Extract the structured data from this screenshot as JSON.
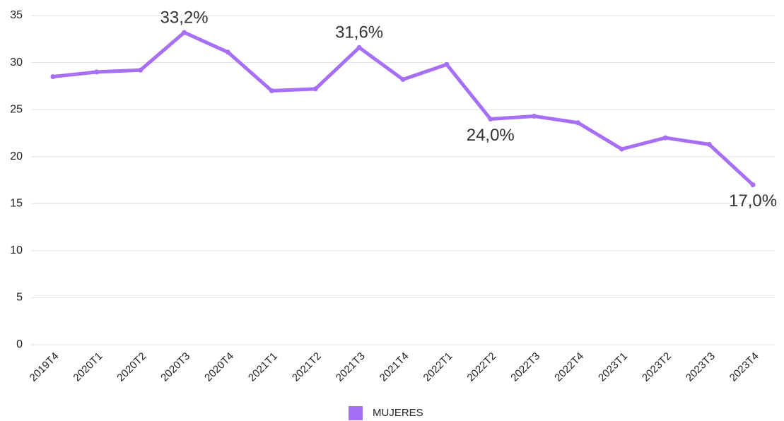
{
  "chart_data": {
    "type": "line",
    "categories": [
      "2019T4",
      "2020T1",
      "2020T2",
      "2020T3",
      "2020T4",
      "2021T1",
      "2021T2",
      "2021T3",
      "2021T4",
      "2022T1",
      "2022T2",
      "2022T3",
      "2022T4",
      "2023T1",
      "2023T2",
      "2023T3",
      "2023T4"
    ],
    "series": [
      {
        "name": "MUJERES",
        "color": "#a66ff5",
        "values": [
          28.5,
          29.0,
          29.2,
          33.2,
          31.1,
          27.0,
          27.2,
          31.6,
          28.2,
          29.8,
          24.0,
          24.3,
          23.6,
          20.8,
          22.0,
          21.3,
          17.0
        ],
        "value_labels": [
          null,
          null,
          null,
          "33,2%",
          null,
          null,
          null,
          "31,6%",
          null,
          null,
          "24,0%",
          null,
          null,
          null,
          null,
          null,
          "17,0%"
        ]
      }
    ],
    "ylim": [
      0,
      35
    ],
    "yticks": [
      0,
      5,
      10,
      15,
      20,
      25,
      30,
      35
    ],
    "grid": true,
    "legend": "bottom"
  }
}
